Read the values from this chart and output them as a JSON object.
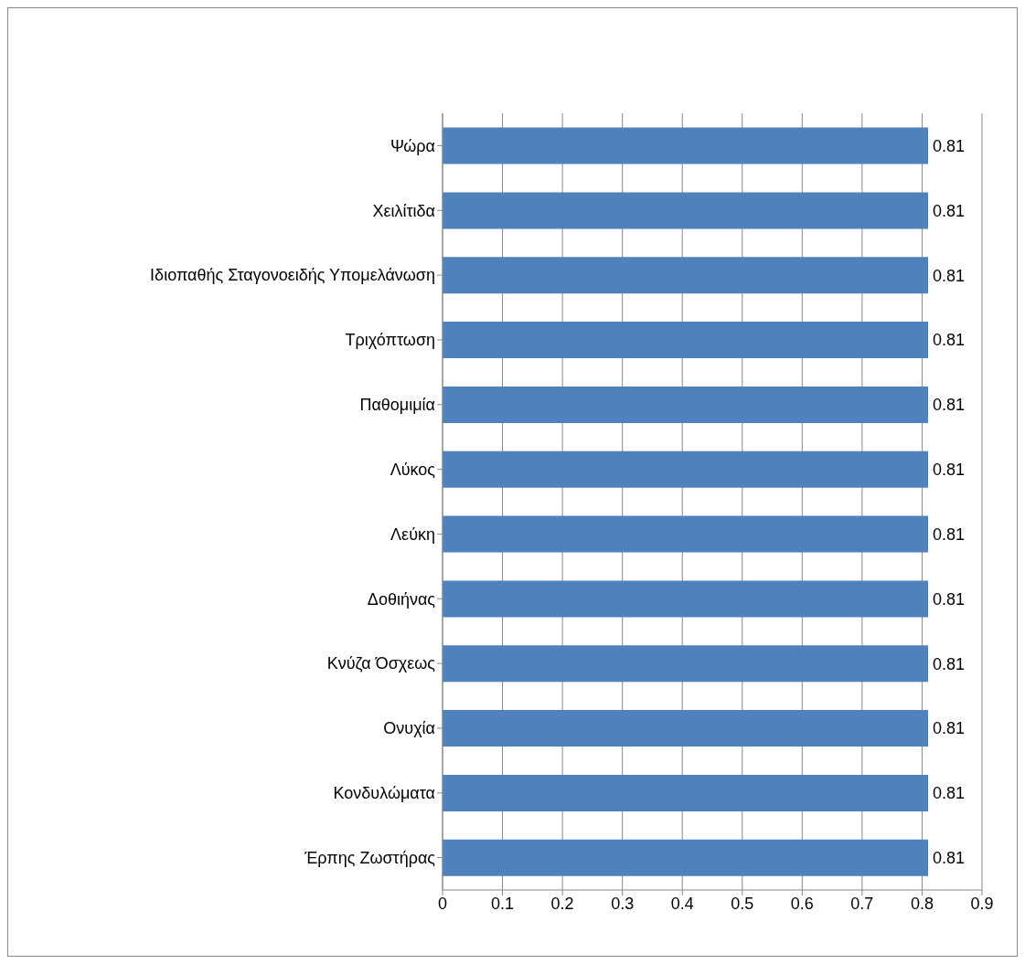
{
  "chart_data": {
    "type": "bar",
    "orientation": "horizontal",
    "categories": [
      "Ψώρα",
      "Χειλίτιδα",
      "Ιδιοπαθής Σταγονοειδής Υπομελάνωση",
      "Τριχόπτωση",
      "Παθομιμία",
      "Λύκος",
      "Λεύκη",
      "Δοθιήνας",
      "Κνύζα Όσχεως",
      "Ονυχία",
      "Κονδυλώματα",
      "Έρπης Ζωστήρας"
    ],
    "values": [
      0.81,
      0.81,
      0.81,
      0.81,
      0.81,
      0.81,
      0.81,
      0.81,
      0.81,
      0.81,
      0.81,
      0.81
    ],
    "color": "#4f81bd",
    "xlim": [
      0,
      0.9
    ],
    "xticks": [
      0,
      0.1,
      0.2,
      0.3,
      0.4,
      0.5,
      0.6,
      0.7,
      0.8,
      0.9
    ],
    "grid": "x",
    "data_labels": true
  }
}
